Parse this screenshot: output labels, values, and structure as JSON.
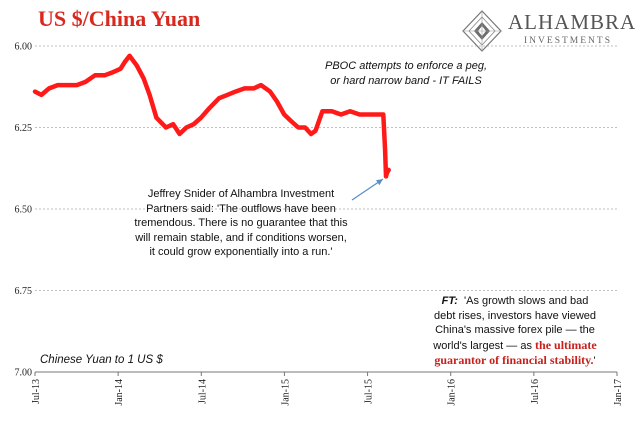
{
  "chart_data": {
    "type": "line",
    "title": "US $/China Yuan",
    "subtitle": "Chinese Yuan to 1 US $",
    "y_axis": {
      "ticks": [
        "6.00",
        "6.25",
        "6.50",
        "6.75",
        "7.00"
      ],
      "min": 6.0,
      "max": 7.0,
      "inverted": true
    },
    "x_axis": {
      "ticks": [
        "Jul-13",
        "Jan-14",
        "Jul-14",
        "Jan-15",
        "Jul-15",
        "Jan-16",
        "Jul-16",
        "Jan-17"
      ],
      "range": [
        "2013-07-01",
        "2017-01-01"
      ]
    },
    "grid": "horizontal dashed",
    "series": [
      {
        "color": "#ff1a1a",
        "x": [
          "2013-07-01",
          "2013-07-15",
          "2013-08-01",
          "2013-08-20",
          "2013-09-10",
          "2013-10-01",
          "2013-10-20",
          "2013-11-10",
          "2013-12-01",
          "2013-12-20",
          "2014-01-05",
          "2014-01-14",
          "2014-01-25",
          "2014-02-10",
          "2014-02-25",
          "2014-03-10",
          "2014-03-25",
          "2014-04-15",
          "2014-05-01",
          "2014-05-15",
          "2014-05-30",
          "2014-06-15",
          "2014-07-01",
          "2014-07-20",
          "2014-08-10",
          "2014-08-28",
          "2014-09-15",
          "2014-10-05",
          "2014-10-25",
          "2014-11-10",
          "2014-11-30",
          "2014-12-15",
          "2014-12-31",
          "2015-01-15",
          "2015-01-31",
          "2015-02-15",
          "2015-02-28",
          "2015-03-10",
          "2015-03-25",
          "2015-04-15",
          "2015-05-05",
          "2015-05-25",
          "2015-06-15",
          "2015-07-01",
          "2015-07-20",
          "2015-08-06",
          "2015-08-10",
          "2015-08-12",
          "2015-08-14",
          "2015-08-18"
        ],
        "y": [
          6.14,
          6.15,
          6.13,
          6.12,
          6.12,
          6.12,
          6.11,
          6.09,
          6.09,
          6.08,
          6.07,
          6.05,
          6.03,
          6.06,
          6.1,
          6.15,
          6.22,
          6.25,
          6.24,
          6.27,
          6.25,
          6.24,
          6.22,
          6.19,
          6.16,
          6.15,
          6.14,
          6.13,
          6.13,
          6.12,
          6.14,
          6.17,
          6.21,
          6.23,
          6.25,
          6.25,
          6.27,
          6.26,
          6.2,
          6.2,
          6.21,
          6.2,
          6.21,
          6.21,
          6.21,
          6.21,
          6.32,
          6.4,
          6.39,
          6.38
        ]
      }
    ],
    "annotations": [
      {
        "lines": [
          "PBOC attempts to enforce a peg,",
          "or hard narrow band - IT FAILS"
        ]
      },
      {
        "lines": [
          "Jeffrey Snider of Alhambra Investment",
          "Partners said: 'The outflows have been",
          "tremendous. There is no guarantee that this",
          "will remain stable, and if conditions worsen,",
          "it could grow exponentially into a run.'"
        ]
      },
      {
        "source": "FT:",
        "lines": [
          "'As growth slows and bad",
          "debt rises, investors have viewed",
          "China's massive forex pile — the",
          "world's largest — as"
        ],
        "highlight": [
          "the ultimate",
          "guarantor of financial stability."
        ],
        "end": "'"
      }
    ]
  },
  "logo": {
    "name": "ALHAMBRA",
    "tagline": "INVESTMENTS"
  },
  "colors": {
    "line": "#ff1a1a",
    "title": "#d9281e",
    "grid": "#aaaaaa",
    "arrow": "#5b8fc7",
    "highlight": "#c8201b"
  }
}
